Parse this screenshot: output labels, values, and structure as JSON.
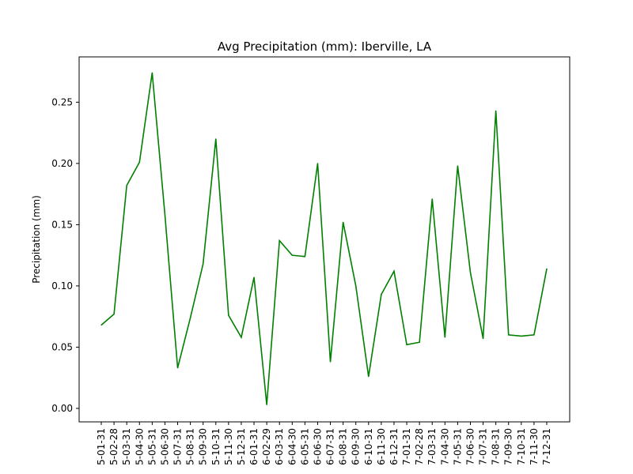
{
  "chart_data": {
    "type": "line",
    "title": "Avg Precipitation (mm): Iberville, LA",
    "xlabel": "",
    "ylabel": "Precipitation (mm)",
    "ylim": [
      -0.011,
      0.287
    ],
    "yticks": [
      0.0,
      0.05,
      0.1,
      0.15,
      0.2,
      0.25
    ],
    "ytick_labels": [
      "0.00",
      "0.05",
      "0.10",
      "0.15",
      "0.20",
      "0.25"
    ],
    "grid": false,
    "line_color": "#008000",
    "categories": [
      "5-01-31",
      "5-02-28",
      "5-03-31",
      "5-04-30",
      "5-05-31",
      "5-06-30",
      "5-07-31",
      "5-08-31",
      "5-09-30",
      "5-10-31",
      "5-11-30",
      "5-12-31",
      "6-01-31",
      "6-02-29",
      "6-03-31",
      "6-04-30",
      "6-05-31",
      "6-06-30",
      "6-07-31",
      "6-08-31",
      "6-09-30",
      "6-10-31",
      "6-11-30",
      "6-12-31",
      "7-01-31",
      "7-02-28",
      "7-03-31",
      "7-04-30",
      "7-05-31",
      "7-06-30",
      "7-07-31",
      "7-08-31",
      "7-09-30",
      "7-10-31",
      "7-11-30",
      "7-12-31"
    ],
    "series": [
      {
        "values": [
          0.068,
          0.077,
          0.182,
          0.201,
          0.274,
          0.158,
          0.033,
          0.074,
          0.118,
          0.22,
          0.076,
          0.058,
          0.107,
          0.003,
          0.137,
          0.125,
          0.124,
          0.2,
          0.038,
          0.152,
          0.1,
          0.026,
          0.093,
          0.112,
          0.052,
          0.054,
          0.171,
          0.058,
          0.198,
          0.111,
          0.057,
          0.243,
          0.06,
          0.059,
          0.06,
          0.114
        ]
      }
    ]
  }
}
